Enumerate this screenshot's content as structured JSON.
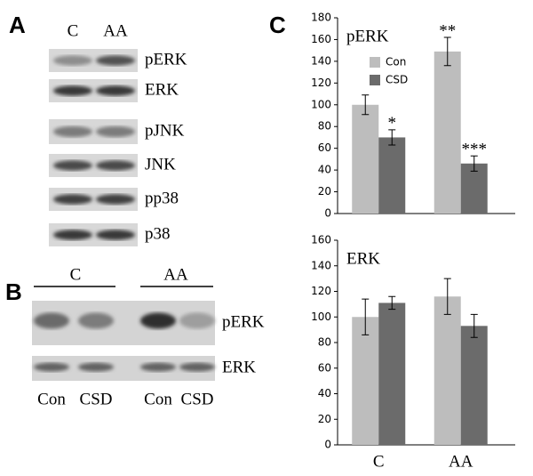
{
  "panels": {
    "a": {
      "label": "A",
      "lanes": [
        "C",
        "AA"
      ],
      "rows": [
        "pERK",
        "ERK",
        "pJNK",
        "JNK",
        "pp38",
        "p38"
      ]
    },
    "b": {
      "label": "B",
      "groups": [
        "C",
        "AA"
      ],
      "lanes": [
        "Con",
        "CSD",
        "Con",
        "CSD"
      ],
      "rows": [
        "pERK",
        "ERK"
      ]
    },
    "c": {
      "label": "C"
    }
  },
  "chart_data": [
    {
      "type": "bar",
      "title": "pERK",
      "ylim": [
        0,
        180
      ],
      "yticks": [
        0,
        20,
        40,
        60,
        80,
        100,
        120,
        140,
        160,
        180
      ],
      "legend": true,
      "series": [
        {
          "name": "Con",
          "color": "#bdbdbd",
          "values": [
            100,
            149
          ],
          "errors": [
            9,
            13
          ],
          "annotations": [
            null,
            "**"
          ]
        },
        {
          "name": "CSD",
          "color": "#6b6b6b",
          "values": [
            70,
            46
          ],
          "errors": [
            7,
            7
          ],
          "annotations": [
            "*",
            "***"
          ]
        }
      ]
    },
    {
      "type": "bar",
      "title": "ERK",
      "ylim": [
        0,
        160
      ],
      "yticks": [
        0,
        20,
        40,
        60,
        80,
        100,
        120,
        140,
        160
      ],
      "legend": false,
      "categories": [
        "C",
        "AA"
      ],
      "series": [
        {
          "color": "#bdbdbd",
          "values": [
            100,
            116
          ],
          "errors": [
            14,
            14
          ]
        },
        {
          "color": "#6b6b6b",
          "values": [
            111,
            93
          ],
          "errors": [
            5,
            9
          ]
        }
      ]
    }
  ]
}
